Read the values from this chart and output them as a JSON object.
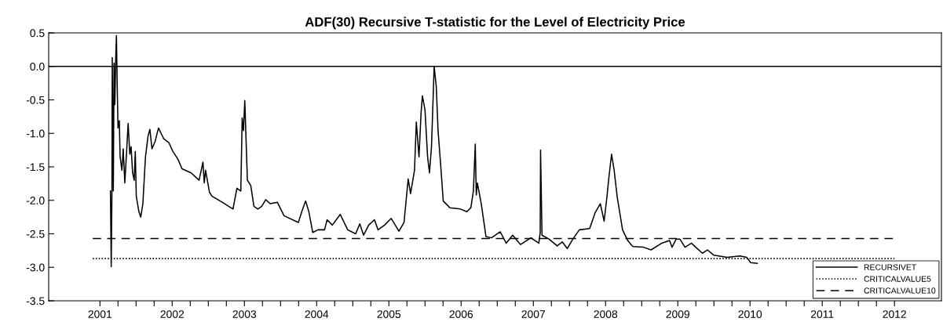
{
  "chart_data": {
    "type": "line",
    "title": "ADF(30) Recursive T-statistic for the Level of Electricity Price",
    "xlim": [
      2000.29,
      2012.65
    ],
    "ylim": [
      -3.5,
      0.5
    ],
    "yticks": [
      -3.5,
      {
        "value": -3,
        "label": "-3.0"
      },
      -2.5,
      {
        "value": -2,
        "label": "-2.0"
      },
      -1.5,
      {
        "value": -1,
        "label": "-1.0"
      },
      -0.5,
      {
        "value": 0,
        "label": "0.0"
      },
      0.5
    ],
    "xticks": [
      2001,
      {
        "value": 2001.25,
        "label": null
      },
      {
        "value": 2001.5,
        "label": null
      },
      {
        "value": 2001.75,
        "label": null
      },
      2002,
      {
        "value": 2002.25,
        "label": null
      },
      {
        "value": 2002.5,
        "label": null
      },
      {
        "value": 2002.75,
        "label": null
      },
      2003,
      {
        "value": 2003.25,
        "label": null
      },
      {
        "value": 2003.5,
        "label": null
      },
      {
        "value": 2003.75,
        "label": null
      },
      2004,
      {
        "value": 2004.25,
        "label": null
      },
      {
        "value": 2004.5,
        "label": null
      },
      {
        "value": 2004.75,
        "label": null
      },
      2005,
      {
        "value": 2005.25,
        "label": null
      },
      {
        "value": 2005.5,
        "label": null
      },
      {
        "value": 2005.75,
        "label": null
      },
      2006,
      {
        "value": 2006.25,
        "label": null
      },
      {
        "value": 2006.5,
        "label": null
      },
      {
        "value": 2006.75,
        "label": null
      },
      2007,
      {
        "value": 2007.25,
        "label": null
      },
      {
        "value": 2007.5,
        "label": null
      },
      {
        "value": 2007.75,
        "label": null
      },
      2008,
      {
        "value": 2008.25,
        "label": null
      },
      {
        "value": 2008.5,
        "label": null
      },
      {
        "value": 2008.75,
        "label": null
      },
      2009,
      {
        "value": 2009.25,
        "label": null
      },
      {
        "value": 2009.5,
        "label": null
      },
      {
        "value": 2009.75,
        "label": null
      },
      2010,
      {
        "value": 2010.25,
        "label": null
      },
      {
        "value": 2010.5,
        "label": null
      },
      {
        "value": 2010.75,
        "label": null
      },
      2011,
      {
        "value": 2011.25,
        "label": null
      },
      {
        "value": 2011.5,
        "label": null
      },
      {
        "value": 2011.75,
        "label": null
      },
      2012
    ],
    "grid": false,
    "legend": "bottom right",
    "ref_lines": [
      {
        "axis": "y",
        "value": 0.0,
        "color": "#000000",
        "line_style": "solid"
      }
    ],
    "series": [
      {
        "name": "RECURSIVET",
        "color": "#000000",
        "line_style": "solid",
        "x": [
          2001.145,
          2001.156,
          2001.166,
          2001.17,
          2001.185,
          2001.195,
          2001.206,
          2001.217,
          2001.228,
          2001.239,
          2001.25,
          2001.268,
          2001.279,
          2001.304,
          2001.322,
          2001.344,
          2001.369,
          2001.39,
          2001.413,
          2001.431,
          2001.452,
          2001.474,
          2001.489,
          2001.503,
          2001.539,
          2001.565,
          2001.594,
          2001.63,
          2001.666,
          2001.691,
          2001.72,
          2001.764,
          2001.81,
          2001.883,
          2001.955,
          2002.01,
          2002.082,
          2002.136,
          2002.263,
          2002.372,
          2002.426,
          2002.444,
          2002.462,
          2002.516,
          2002.553,
          2002.697,
          2002.842,
          2002.896,
          2002.95,
          2002.969,
          2002.987,
          2003.005,
          2003.041,
          2003.088,
          2003.131,
          2003.186,
          2003.24,
          2003.295,
          2003.356,
          2003.457,
          2003.548,
          2003.747,
          2003.8,
          2003.848,
          2003.892,
          2003.946,
          2004.018,
          2004.109,
          2004.145,
          2004.217,
          2004.326,
          2004.43,
          2004.54,
          2004.597,
          2004.65,
          2004.72,
          2004.8,
          2004.85,
          2004.94,
          2005.032,
          2005.14,
          2005.21,
          2005.267,
          2005.3,
          2005.355,
          2005.38,
          2005.417,
          2005.446,
          2005.464,
          2005.5,
          2005.536,
          2005.562,
          2005.59,
          2005.627,
          2005.656,
          2005.681,
          2005.717,
          2005.753,
          2005.844,
          2005.989,
          2006.08,
          2006.135,
          2006.17,
          2006.196,
          2006.21,
          2006.225,
          2006.279,
          2006.344,
          2006.42,
          2006.541,
          2006.624,
          2006.714,
          2006.823,
          2006.967,
          2007.076,
          2007.095,
          2007.1,
          2007.12,
          2007.22,
          2007.33,
          2007.4,
          2007.47,
          2007.546,
          2007.637,
          2007.78,
          2007.854,
          2007.927,
          2007.98,
          2008.017,
          2008.046,
          2008.083,
          2008.119,
          2008.16,
          2008.235,
          2008.307,
          2008.36,
          2008.38,
          2008.525,
          2008.63,
          2008.778,
          2008.886,
          2008.92,
          2008.977,
          2009.03,
          2009.1,
          2009.19,
          2009.248,
          2009.34,
          2009.41,
          2009.5,
          2009.683,
          2009.86,
          2009.954,
          2010.008,
          2010.1
        ],
        "values": [
          -1.86,
          -2.99,
          -1.86,
          0.13,
          -1.86,
          0.05,
          -0.57,
          0.07,
          0.46,
          -0.3,
          -0.92,
          -0.81,
          -1.35,
          -1.55,
          -1.23,
          -1.74,
          -1.27,
          -0.85,
          -1.31,
          -1.2,
          -1.59,
          -1.7,
          -1.27,
          -1.94,
          -2.17,
          -2.25,
          -2.05,
          -1.35,
          -1.04,
          -0.94,
          -1.23,
          -1.12,
          -0.92,
          -1.08,
          -1.14,
          -1.27,
          -1.39,
          -1.53,
          -1.59,
          -1.7,
          -1.43,
          -1.74,
          -1.55,
          -1.88,
          -1.94,
          -2.03,
          -2.13,
          -1.82,
          -1.86,
          -0.77,
          -0.96,
          -0.51,
          -1.7,
          -1.78,
          -2.09,
          -2.13,
          -2.09,
          -1.99,
          -2.05,
          -2.03,
          -2.23,
          -2.33,
          -2.15,
          -2.01,
          -2.17,
          -2.48,
          -2.44,
          -2.44,
          -2.29,
          -2.37,
          -2.21,
          -2.44,
          -2.5,
          -2.35,
          -2.52,
          -2.37,
          -2.29,
          -2.44,
          -2.37,
          -2.27,
          -2.46,
          -2.33,
          -1.68,
          -1.9,
          -1.55,
          -0.83,
          -1.35,
          -0.69,
          -0.44,
          -0.65,
          -1.35,
          -1.59,
          -1.2,
          0.0,
          -0.3,
          -0.96,
          -1.47,
          -2.01,
          -2.11,
          -2.13,
          -2.17,
          -2.11,
          -1.86,
          -1.16,
          -1.92,
          -1.74,
          -2.05,
          -2.54,
          -2.56,
          -2.47,
          -2.64,
          -2.52,
          -2.66,
          -2.56,
          -2.64,
          -2.48,
          -1.25,
          -2.52,
          -2.58,
          -2.68,
          -2.62,
          -2.72,
          -2.58,
          -2.44,
          -2.42,
          -2.19,
          -2.05,
          -2.31,
          -1.97,
          -1.66,
          -1.31,
          -1.55,
          -1.94,
          -2.44,
          -2.6,
          -2.67,
          -2.69,
          -2.7,
          -2.74,
          -2.64,
          -2.6,
          -2.7,
          -2.58,
          -2.58,
          -2.7,
          -2.64,
          -2.7,
          -2.79,
          -2.74,
          -2.82,
          -2.85,
          -2.83,
          -2.85,
          -2.93,
          -2.94
        ]
      },
      {
        "name": "CRITICALVALUE5",
        "color": "#000000",
        "line_style": "dotted",
        "x": [
          2000.9,
          2012.0
        ],
        "values": [
          -2.87,
          -2.87
        ]
      },
      {
        "name": "CRITICALVALUE10",
        "color": "#000000",
        "line_style": "dashed",
        "x": [
          2000.9,
          2012.0
        ],
        "values": [
          -2.57,
          -2.57
        ]
      }
    ]
  }
}
